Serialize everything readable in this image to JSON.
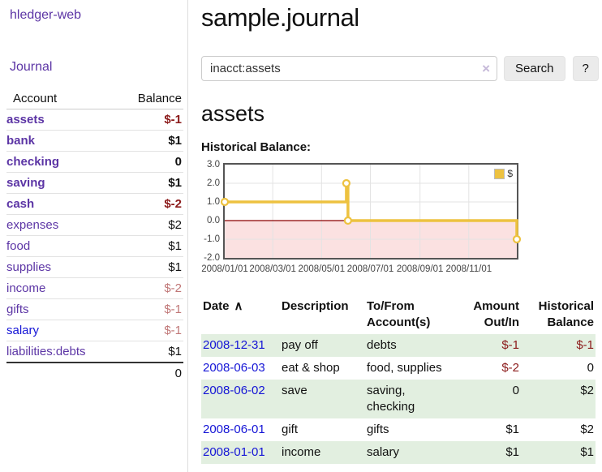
{
  "app": {
    "brand": "hledger-web",
    "nav_journal": "Journal"
  },
  "sidebar": {
    "col_account": "Account",
    "col_balance": "Balance",
    "accounts": [
      {
        "name": "assets",
        "depth": 0,
        "bold": true,
        "link_color": "purple",
        "balance": "$-1",
        "balance_class": "neg-strong"
      },
      {
        "name": "bank",
        "depth": 1,
        "bold": true,
        "link_color": "purple",
        "balance": "$1",
        "balance_class": "pos"
      },
      {
        "name": "checking",
        "depth": 2,
        "bold": true,
        "link_color": "purple",
        "balance": "0",
        "balance_class": "pos"
      },
      {
        "name": "saving",
        "depth": 2,
        "bold": true,
        "link_color": "purple",
        "balance": "$1",
        "balance_class": "pos"
      },
      {
        "name": "cash",
        "depth": 1,
        "bold": true,
        "link_color": "purple",
        "balance": "$-2",
        "balance_class": "neg-strong"
      },
      {
        "name": "expenses",
        "depth": 0,
        "bold": false,
        "link_color": "purple",
        "balance": "$2",
        "balance_class": "pos"
      },
      {
        "name": "food",
        "depth": 1,
        "bold": false,
        "link_color": "purple",
        "balance": "$1",
        "balance_class": "pos"
      },
      {
        "name": "supplies",
        "depth": 1,
        "bold": false,
        "link_color": "purple",
        "balance": "$1",
        "balance_class": "pos"
      },
      {
        "name": "income",
        "depth": 0,
        "bold": false,
        "link_color": "purple",
        "balance": "$-2",
        "balance_class": "neg-soft"
      },
      {
        "name": "gifts",
        "depth": 1,
        "bold": false,
        "link_color": "purple",
        "balance": "$-1",
        "balance_class": "neg-soft"
      },
      {
        "name": "salary",
        "depth": 1,
        "bold": false,
        "link_color": "blue",
        "balance": "$-1",
        "balance_class": "neg-soft"
      },
      {
        "name": "liabilities:debts",
        "depth": 0,
        "bold": false,
        "link_color": "purple",
        "balance": "$1",
        "balance_class": "pos"
      }
    ],
    "total": "0"
  },
  "header": {
    "title": "sample.journal"
  },
  "search": {
    "value": "inacct:assets",
    "clear_icon": "×",
    "button_label": "Search",
    "help_label": "?"
  },
  "account_page": {
    "heading": "assets",
    "chart_label": "Historical Balance:"
  },
  "chart_data": {
    "type": "line",
    "step": true,
    "title": "Historical Balance",
    "series": [
      {
        "name": "$",
        "color": "#EDC240",
        "points": [
          [
            "2008-01-01",
            1
          ],
          [
            "2008-06-01",
            2
          ],
          [
            "2008-06-03",
            0
          ],
          [
            "2008-12-31",
            -1
          ]
        ]
      }
    ],
    "x_range": [
      "2008-01-01",
      "2008-12-31"
    ],
    "x_ticks": [
      {
        "label": "2008/01/01",
        "date": "2008-01-01"
      },
      {
        "label": "2008/03/01",
        "date": "2008-03-01"
      },
      {
        "label": "2008/05/01",
        "date": "2008-05-01"
      },
      {
        "label": "2008/07/01",
        "date": "2008-07-01"
      },
      {
        "label": "2008/09/01",
        "date": "2008-09-01"
      },
      {
        "label": "2008/11/01",
        "date": "2008-11-01"
      }
    ],
    "y_ticks": [
      {
        "label": "3.0",
        "value": 3
      },
      {
        "label": "2.0",
        "value": 2
      },
      {
        "label": "1.0",
        "value": 1
      },
      {
        "label": "0.0",
        "value": 0
      },
      {
        "label": "-1.0",
        "value": -1
      },
      {
        "label": "-2.0",
        "value": -2
      }
    ],
    "ylim": [
      -2,
      3
    ],
    "grid": true,
    "legend_position": "top-right",
    "negative_region_color": "#fbe1e1",
    "zero_line_color": "#8b0000",
    "grid_color": "#e3e3e3"
  },
  "register": {
    "columns": [
      {
        "label": "Date",
        "sort_icon": "∧",
        "align": "left"
      },
      {
        "label": "Description",
        "align": "left"
      },
      {
        "label": "To/From Account(s)",
        "align": "left"
      },
      {
        "label": "Amount Out/In",
        "align": "right"
      },
      {
        "label": "Historical Balance",
        "align": "right"
      }
    ],
    "rows": [
      {
        "date": "2008-12-31",
        "description": "pay off",
        "accounts": "debts",
        "amount": "$-1",
        "amount_negative": true,
        "balance": "$-1",
        "balance_negative": true
      },
      {
        "date": "2008-06-03",
        "description": "eat & shop",
        "accounts": "food, supplies",
        "amount": "$-2",
        "amount_negative": true,
        "balance": "0",
        "balance_negative": false
      },
      {
        "date": "2008-06-02",
        "description": "save",
        "accounts": "saving,\nchecking",
        "amount": "0",
        "amount_negative": false,
        "balance": "$2",
        "balance_negative": false
      },
      {
        "date": "2008-06-01",
        "description": "gift",
        "accounts": "gifts",
        "amount": "$1",
        "amount_negative": false,
        "balance": "$2",
        "balance_negative": false
      },
      {
        "date": "2008-01-01",
        "description": "income",
        "accounts": "salary",
        "amount": "$1",
        "amount_negative": false,
        "balance": "$1",
        "balance_negative": false
      }
    ]
  },
  "colors": {
    "link_purple": "#5c35a5",
    "link_blue": "#1515d6",
    "negative_strong": "#8b1a1a",
    "negative_soft": "#c07777",
    "stripe_green": "#e2efe0",
    "chart_gold": "#EDC240",
    "chart_negative_bg": "#fbe1e1",
    "chart_zero_line": "#8b0000"
  }
}
